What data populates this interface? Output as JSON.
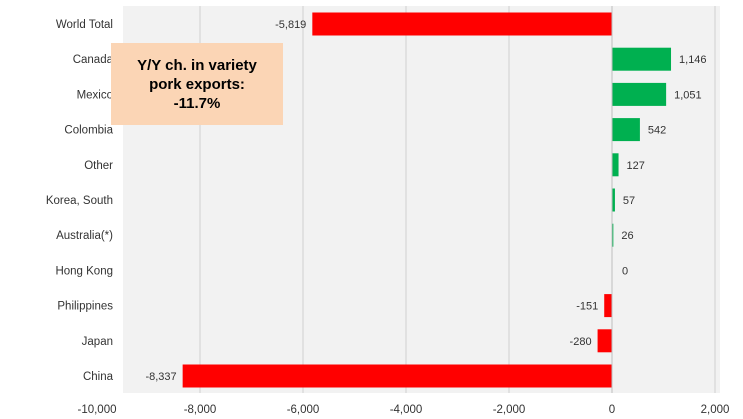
{
  "chart_data": {
    "type": "bar",
    "orientation": "horizontal",
    "categories": [
      "World Total",
      "Canada",
      "Mexico",
      "Colombia",
      "Other",
      "Korea, South",
      "Australia(*)",
      "Hong Kong",
      "Philippines",
      "Japan",
      "China"
    ],
    "values": [
      -5819,
      1146,
      1051,
      542,
      127,
      57,
      26,
      0,
      -151,
      -280,
      -8337
    ],
    "data_labels": [
      "-5,819",
      "1,146",
      "1,051",
      "542",
      "127",
      "57",
      "26",
      "0",
      "-151",
      "-280",
      "-8,337"
    ],
    "xlim": [
      -10000,
      2000
    ],
    "x_ticks": [
      -10000,
      -8000,
      -6000,
      -4000,
      -2000,
      0,
      2000
    ],
    "x_tick_labels": [
      "-10,000",
      "-8,000",
      "-6,000",
      "-4,000",
      "-2,000",
      "0",
      "2,000"
    ],
    "grid": "vertical",
    "colors": {
      "positive": "#00b050",
      "negative": "#ff0000",
      "plot_bg": "#f2f2f2",
      "grid": "#d0d0d0",
      "annotation_bg": "#fbd5b5"
    },
    "annotation": {
      "lines": [
        "Y/Y ch. in variety",
        "pork exports:",
        "-11.7%"
      ]
    },
    "title": "",
    "xlabel": "",
    "ylabel": ""
  }
}
